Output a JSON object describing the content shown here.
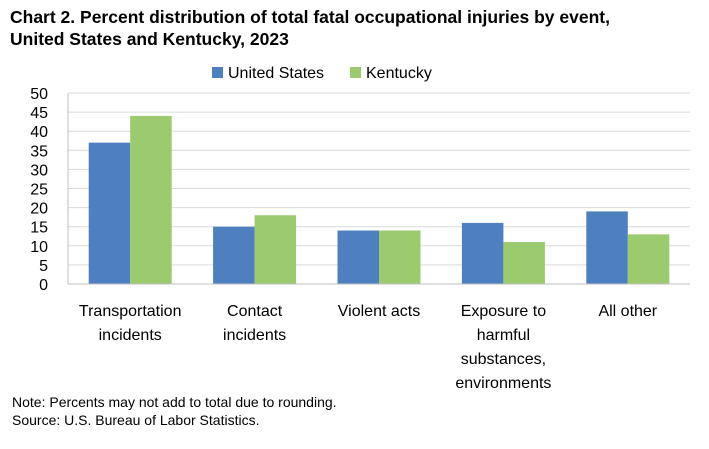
{
  "chart_data": {
    "type": "bar",
    "title": "Chart 2. Percent distribution of total fatal occupational injuries by event, United States and Kentucky, 2023",
    "title_lines": [
      "Chart 2. Percent distribution of total fatal occupational injuries by event,",
      "United States and Kentucky, 2023"
    ],
    "categories": [
      [
        "Transportation",
        "incidents"
      ],
      [
        "Contact",
        "incidents"
      ],
      [
        "Violent acts"
      ],
      [
        "Exposure to",
        "harmful",
        "substances,",
        "environments"
      ],
      [
        "All other"
      ]
    ],
    "series": [
      {
        "name": "United States",
        "color": "#4e7fbf",
        "values": [
          37,
          15,
          14,
          16,
          19
        ]
      },
      {
        "name": "Kentucky",
        "color": "#9bca6f",
        "values": [
          44,
          18,
          14,
          11,
          13
        ]
      }
    ],
    "xlabel": "",
    "ylabel": "",
    "ylim": [
      0,
      50
    ],
    "yticks": [
      0,
      5,
      10,
      15,
      20,
      25,
      30,
      35,
      40,
      45,
      50
    ],
    "grid": true,
    "legend_position": "top-center"
  },
  "notes": {
    "note": "Note: Percents may not add to total due to rounding.",
    "source": "Source: U.S. Bureau of Labor Statistics."
  }
}
